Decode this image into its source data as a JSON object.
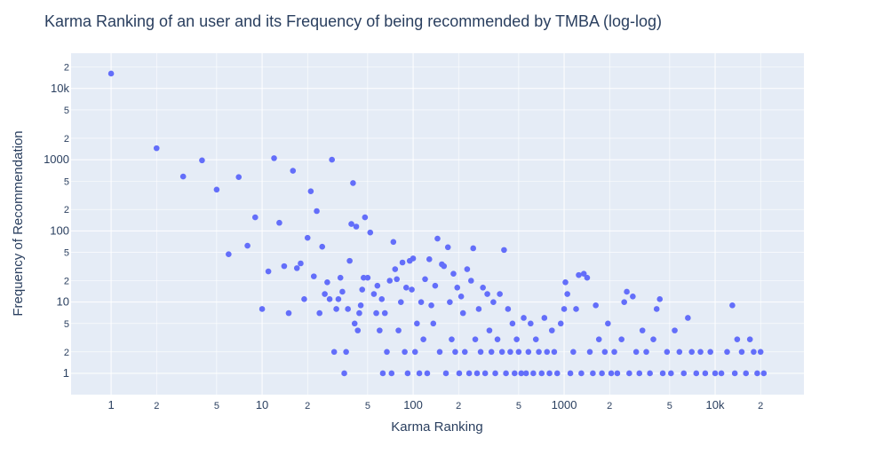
{
  "chart_data": {
    "type": "scatter",
    "title": "Karma Ranking of an user and its Frequency of being recommended by TMBA (log-log)",
    "x_label": "Karma Ranking",
    "y_label": "Frequency of Recommendation",
    "xscale": "log",
    "yscale": "log",
    "grid": true,
    "color": "#636efa",
    "xlim": [
      0.543,
      38730
    ],
    "ylim": [
      0.502,
      31300
    ],
    "xticks": [
      1,
      {
        "value": 2,
        "label": "2"
      },
      {
        "value": 5,
        "label": "5"
      },
      10,
      {
        "value": 20,
        "label": "2"
      },
      {
        "value": 50,
        "label": "5"
      },
      100,
      {
        "value": 200,
        "label": "2"
      },
      {
        "value": 500,
        "label": "5"
      },
      1000,
      {
        "value": 2000,
        "label": "2"
      },
      {
        "value": 5000,
        "label": "5"
      },
      {
        "value": 10000,
        "label": "10k"
      },
      {
        "value": 20000,
        "label": "2"
      }
    ],
    "yticks": [
      1,
      {
        "value": 2,
        "label": "2"
      },
      {
        "value": 5,
        "label": "5"
      },
      10,
      {
        "value": 20,
        "label": "2"
      },
      {
        "value": 50,
        "label": "5"
      },
      100,
      {
        "value": 200,
        "label": "2"
      },
      {
        "value": 500,
        "label": "5"
      },
      1000,
      {
        "value": 2000,
        "label": "2"
      },
      {
        "value": 5000,
        "label": "5"
      },
      {
        "value": 10000,
        "label": "10k"
      },
      {
        "value": 20000,
        "label": "2"
      }
    ],
    "x": [
      1,
      2,
      3,
      4,
      5,
      6,
      7,
      8,
      9,
      10,
      11,
      12,
      13,
      14,
      15,
      16,
      17,
      18,
      19,
      20,
      21,
      22,
      23,
      24,
      25,
      26,
      27,
      28,
      29,
      30,
      31,
      32,
      33,
      34,
      35,
      36,
      37,
      38,
      39,
      40,
      41,
      42,
      43,
      44,
      45,
      46,
      47,
      48,
      50,
      52,
      55,
      57,
      58,
      60,
      62,
      63,
      65,
      67,
      70,
      72,
      74,
      76,
      78,
      80,
      83,
      85,
      88,
      90,
      92,
      95,
      98,
      100,
      103,
      106,
      110,
      113,
      117,
      120,
      124,
      128,
      132,
      136,
      140,
      145,
      150,
      155,
      160,
      165,
      170,
      175,
      180,
      185,
      190,
      196,
      202,
      208,
      214,
      220,
      228,
      235,
      242,
      250,
      258,
      265,
      272,
      280,
      290,
      300,
      310,
      320,
      330,
      340,
      350,
      362,
      375,
      388,
      400,
      412,
      425,
      440,
      455,
      470,
      485,
      500,
      520,
      540,
      560,
      580,
      600,
      625,
      650,
      680,
      710,
      740,
      770,
      800,
      830,
      860,
      900,
      950,
      1000,
      1020,
      1050,
      1100,
      1150,
      1200,
      1250,
      1300,
      1350,
      1420,
      1480,
      1550,
      1620,
      1700,
      1780,
      1860,
      1950,
      2050,
      2150,
      2250,
      2400,
      2500,
      2600,
      2700,
      2850,
      3000,
      3150,
      3300,
      3500,
      3700,
      3900,
      4100,
      4300,
      4500,
      4800,
      5100,
      5400,
      5800,
      6200,
      6600,
      7000,
      7500,
      8000,
      8600,
      9300,
      10000,
      11000,
      12000,
      13000,
      13500,
      14000,
      15000,
      16000,
      17000,
      18000,
      19000,
      20000,
      21000
    ],
    "values": [
      16200,
      1450,
      580,
      980,
      380,
      47,
      570,
      62,
      155,
      8,
      27,
      1050,
      130,
      32,
      7,
      700,
      30,
      35,
      11,
      80,
      360,
      23,
      190,
      7,
      60,
      13,
      19,
      11,
      1000,
      2,
      8,
      11,
      22,
      14,
      1,
      2,
      8,
      38,
      125,
      470,
      5,
      115,
      4,
      7,
      9,
      15,
      22,
      155,
      22,
      95,
      13,
      7,
      17,
      4,
      11,
      1,
      7,
      2,
      20,
      1,
      70,
      29,
      21,
      4,
      10,
      36,
      2,
      16,
      1,
      38,
      15,
      41,
      2,
      5,
      1,
      10,
      3,
      21,
      1,
      40,
      9,
      5,
      17,
      78,
      2,
      34,
      32,
      1,
      59,
      10,
      3,
      25,
      2,
      16,
      1,
      12,
      7,
      2,
      29,
      1,
      20,
      57,
      3,
      1,
      8,
      2,
      16,
      1,
      13,
      4,
      2,
      10,
      1,
      3,
      13,
      2,
      54,
      1,
      8,
      2,
      5,
      1,
      3,
      2,
      1,
      6,
      1,
      2,
      5,
      1,
      3,
      2,
      1,
      6,
      2,
      1,
      4,
      2,
      1,
      5,
      8,
      19,
      13,
      1,
      2,
      8,
      24,
      1,
      25,
      22,
      2,
      1,
      9,
      3,
      1,
      2,
      5,
      1,
      2,
      1,
      3,
      10,
      14,
      1,
      12,
      2,
      1,
      4,
      2,
      1,
      3,
      8,
      11,
      1,
      2,
      1,
      4,
      2,
      1,
      6,
      2,
      1,
      2,
      1,
      2,
      1,
      1,
      2,
      9,
      1,
      3,
      2,
      1,
      3,
      2,
      1,
      2,
      1
    ]
  }
}
